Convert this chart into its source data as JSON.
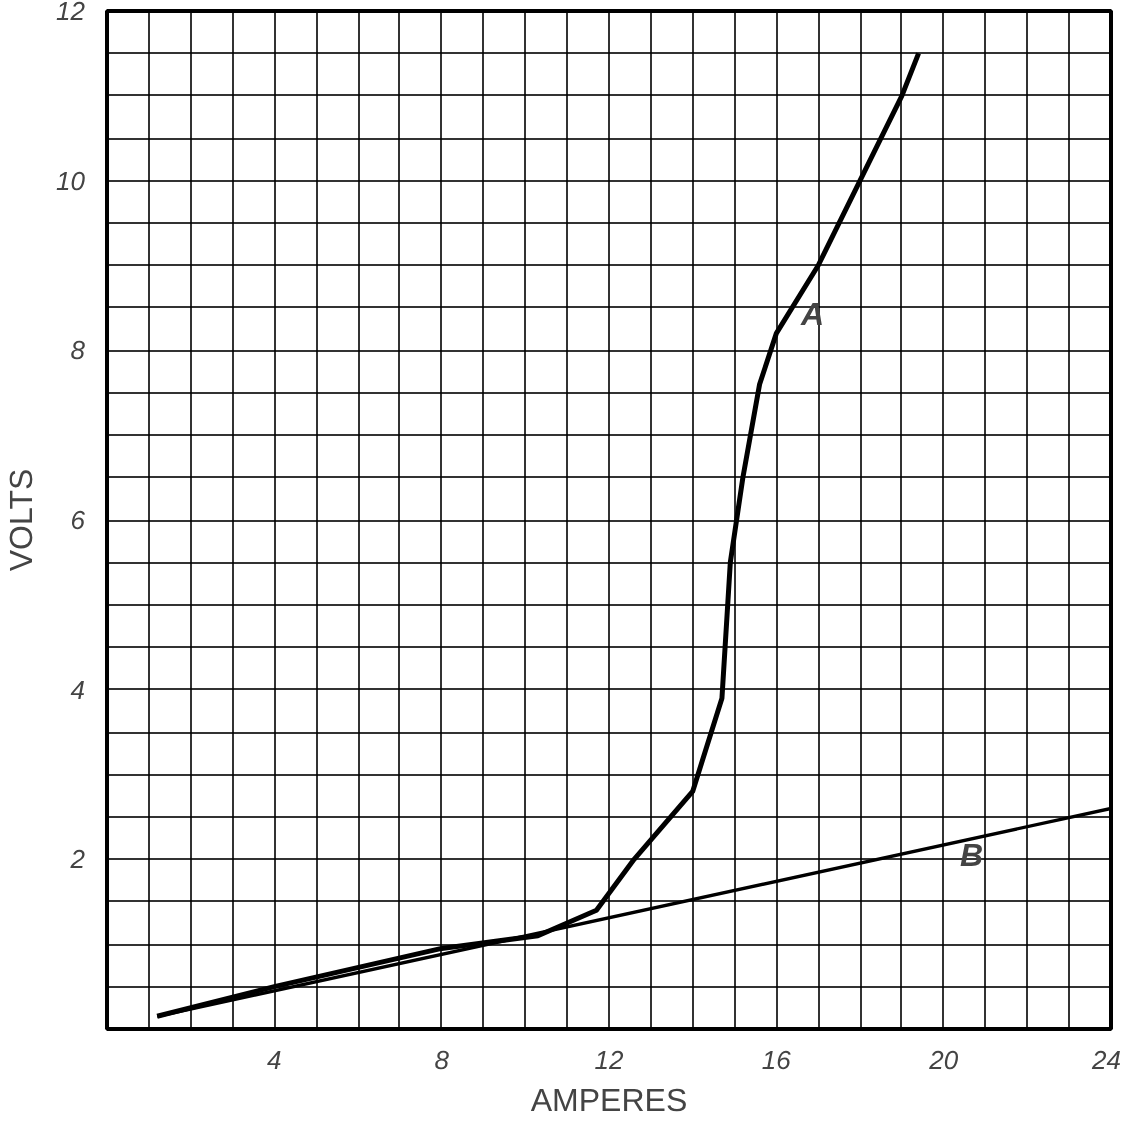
{
  "chart_data": {
    "type": "line",
    "xlabel": "AMPERES",
    "ylabel": "VOLTS",
    "xlim": [
      0,
      24
    ],
    "ylim": [
      0,
      12
    ],
    "xticks": [
      {
        "value": 0,
        "label": null
      },
      {
        "value": 1,
        "label": null
      },
      {
        "value": 2,
        "label": null
      },
      {
        "value": 3,
        "label": null
      },
      4,
      {
        "value": 5,
        "label": null
      },
      {
        "value": 6,
        "label": null
      },
      {
        "value": 7,
        "label": null
      },
      8,
      {
        "value": 9,
        "label": null
      },
      {
        "value": 10,
        "label": null
      },
      {
        "value": 11,
        "label": null
      },
      12,
      {
        "value": 13,
        "label": null
      },
      {
        "value": 14,
        "label": null
      },
      {
        "value": 15,
        "label": null
      },
      16,
      {
        "value": 17,
        "label": null
      },
      {
        "value": 18,
        "label": null
      },
      {
        "value": 19,
        "label": null
      },
      20,
      {
        "value": 21,
        "label": null
      },
      {
        "value": 22,
        "label": null
      },
      {
        "value": 23,
        "label": null
      },
      24
    ],
    "yticks": [
      {
        "value": 0,
        "label": null
      },
      {
        "value": 0.5,
        "label": null
      },
      {
        "value": 1,
        "label": null
      },
      {
        "value": 1.5,
        "label": null
      },
      2,
      {
        "value": 2.5,
        "label": null
      },
      {
        "value": 3,
        "label": null
      },
      {
        "value": 3.5,
        "label": null
      },
      4,
      {
        "value": 4.5,
        "label": null
      },
      {
        "value": 5,
        "label": null
      },
      {
        "value": 5.5,
        "label": null
      },
      6,
      {
        "value": 6.5,
        "label": null
      },
      {
        "value": 7,
        "label": null
      },
      {
        "value": 7.5,
        "label": null
      },
      8,
      {
        "value": 8.5,
        "label": null
      },
      {
        "value": 9,
        "label": null
      },
      {
        "value": 9.5,
        "label": null
      },
      10,
      {
        "value": 10.5,
        "label": null
      },
      {
        "value": 11,
        "label": null
      },
      {
        "value": 11.5,
        "label": null
      },
      12
    ],
    "grid": true,
    "marker": "none",
    "line_style": "solid",
    "series": [
      {
        "color": "#000000",
        "x": [
          1.2,
          4,
          8,
          10.3,
          11.7,
          12.6,
          14,
          14.7,
          14.9,
          15.2,
          15.6,
          16,
          17,
          18,
          19,
          19.4
        ],
        "values": [
          0.15,
          0.5,
          0.95,
          1.1,
          1.4,
          2.0,
          2.8,
          3.9,
          5.5,
          6.5,
          7.6,
          8.2,
          9.0,
          10.0,
          11.0,
          11.5
        ]
      },
      {
        "color": "#000000",
        "x": [
          1.2,
          24
        ],
        "values": [
          0.15,
          2.6
        ]
      }
    ],
    "annotations": [
      {
        "text": "A",
        "x": 16.4,
        "y": 8.7
      },
      {
        "text": "B",
        "x": 20.2,
        "y": 2.32
      }
    ]
  }
}
